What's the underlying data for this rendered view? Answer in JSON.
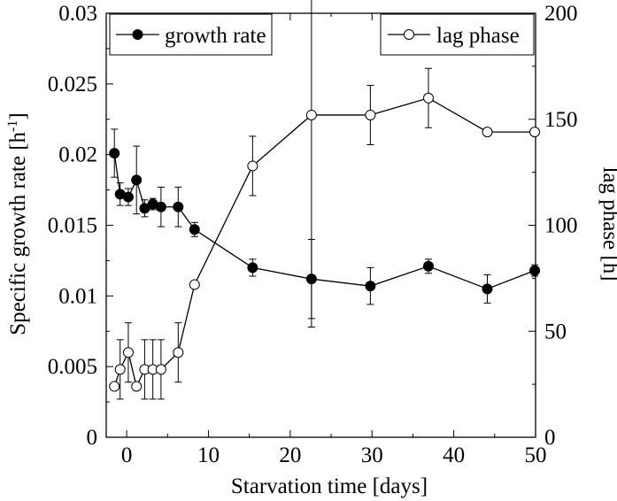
{
  "chart_data": {
    "type": "line",
    "x_label": "Starvation time [days]",
    "y_left_label_main": "Specific growth rate [h",
    "y_left_label_sup": "-1",
    "y_left_label_end": "]",
    "y_right_label": "lag phase [h]",
    "x_ticks": [
      "0",
      "10",
      "20",
      "30",
      "40",
      "50"
    ],
    "x_tick_values": [
      0,
      10,
      20,
      30,
      40,
      50
    ],
    "y_left_ticks": [
      "0",
      "0.005",
      "0.01",
      "0.015",
      "0.02",
      "0.025",
      "0.03"
    ],
    "y_left_tick_values": [
      0,
      0.005,
      0.01,
      0.015,
      0.02,
      0.025,
      0.03
    ],
    "y_right_ticks": [
      "0",
      "50",
      "100",
      "150",
      "200"
    ],
    "y_right_tick_values": [
      0,
      50,
      100,
      150,
      200
    ],
    "xlim": [
      -2.5,
      50
    ],
    "ylim_left": [
      0,
      0.03
    ],
    "ylim_right": [
      0,
      200
    ],
    "series": [
      {
        "name": "growth rate",
        "axis": "left",
        "marker": "filled-circle",
        "x": [
          -1.5,
          -0.8,
          0.2,
          1.2,
          2.2,
          3.2,
          4.2,
          6.3,
          8.3,
          15.4,
          22.6,
          29.8,
          36.9,
          44.1,
          49.9
        ],
        "y": [
          0.0201,
          0.0172,
          0.017,
          0.0182,
          0.0162,
          0.0165,
          0.0163,
          0.0163,
          0.0147,
          0.012,
          0.0112,
          0.0107,
          0.0121,
          0.0105,
          0.0118
        ],
        "err": [
          0.0017,
          0.0008,
          0.0006,
          0.0024,
          0.0006,
          0.0004,
          0.0014,
          0.0014,
          0.0005,
          0.0006,
          0.0028,
          0.0013,
          0.0005,
          0.001,
          0.0004
        ]
      },
      {
        "name": "lag phase",
        "axis": "right",
        "marker": "open-circle",
        "x": [
          -1.5,
          -0.8,
          0.2,
          1.2,
          2.2,
          3.2,
          4.2,
          6.3,
          8.3,
          15.4,
          22.6,
          29.8,
          36.9,
          44.1,
          49.9
        ],
        "y": [
          24,
          32,
          40,
          24,
          32,
          32,
          32,
          40,
          72,
          128,
          152,
          152,
          160,
          144,
          144
        ],
        "err": [
          0,
          14,
          14,
          0,
          14,
          14,
          14,
          14,
          0,
          14,
          100,
          14,
          14,
          0,
          0
        ]
      }
    ],
    "legend_left": "growth rate",
    "legend_right": "lag phase"
  }
}
